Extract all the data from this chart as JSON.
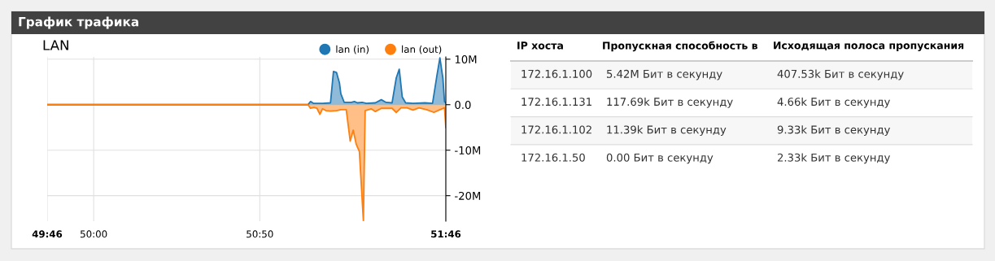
{
  "chart_data": [
    {
      "type": "area",
      "title": "График трафика",
      "subtitle": "LAN",
      "xlim": [
        49.7667,
        51.7667
      ],
      "xticks": [
        {
          "value": 49.7667,
          "label": "49:46"
        },
        {
          "value": 50,
          "label": "50:00"
        },
        {
          "value": 50.8333,
          "label": "50:50"
        },
        {
          "value": 51.7667,
          "label": "51:46"
        }
      ],
      "ylim": [
        -25.6,
        10.5
      ],
      "yticks": [
        {
          "value": 10,
          "label": "10M"
        },
        {
          "value": 0,
          "label": "0.0"
        },
        {
          "value": -10,
          "label": "-10M"
        },
        {
          "value": -20,
          "label": "-20M"
        }
      ],
      "grid": true,
      "legend": "top right",
      "marker": "none",
      "line_style": "solid",
      "series": [
        {
          "name": "lan (in)",
          "color": "#1f77b4",
          "x": [
            49.7667,
            51.075,
            51.088,
            51.102,
            51.12,
            51.15,
            51.188,
            51.203,
            51.218,
            51.233,
            51.24,
            51.257,
            51.293,
            51.308,
            51.323,
            51.347,
            51.368,
            51.413,
            51.443,
            51.467,
            51.497,
            51.518,
            51.533,
            51.548,
            51.565,
            51.602,
            51.662,
            51.7,
            51.722,
            51.737,
            51.752,
            51.76,
            51.7667
          ],
          "values": [
            0,
            0,
            0.7,
            0.3,
            0.3,
            0.3,
            0.4,
            7.3,
            7.1,
            4.8,
            2.4,
            0.5,
            0.5,
            0.7,
            0.4,
            0.5,
            0.3,
            0.4,
            1.1,
            0.5,
            0.4,
            5.9,
            7.8,
            1.7,
            0.4,
            0.3,
            0.4,
            0.3,
            6.4,
            10.3,
            5.8,
            0.7,
            0.4
          ]
        },
        {
          "name": "lan (out)",
          "color": "#ff7f0e",
          "x": [
            49.7667,
            51.075,
            51.088,
            51.105,
            51.12,
            51.135,
            51.148,
            51.165,
            51.188,
            51.218,
            51.24,
            51.267,
            51.287,
            51.302,
            51.317,
            51.333,
            51.353,
            51.362,
            51.392,
            51.413,
            51.443,
            51.497,
            51.518,
            51.542,
            51.572,
            51.602,
            51.632,
            51.67,
            51.707,
            51.737,
            51.76,
            51.7667
          ],
          "values": [
            0,
            0,
            -0.8,
            -0.6,
            -0.8,
            -2.1,
            -0.9,
            -1.3,
            -1.4,
            -1.3,
            -1.1,
            -1.1,
            -8.0,
            -5.6,
            -8.7,
            -10.3,
            -25.5,
            -1.3,
            -0.9,
            -1.5,
            -0.8,
            -0.8,
            -1.7,
            -0.7,
            -0.7,
            -1.2,
            -0.7,
            -1.1,
            -1.7,
            -1.1,
            -0.7,
            -5.0
          ]
        }
      ]
    },
    {
      "type": "other",
      "categories": [
        "IP хоста",
        "Пропускная способность в",
        "Исходящая полоса пропускания"
      ],
      "cell_labels": [
        [
          "172.16.1.100",
          "5.42M Бит в секунду",
          "407.53k Бит в секунду"
        ],
        [
          "172.16.1.131",
          "117.69k Бит в секунду",
          "4.66k Бит в секунду"
        ],
        [
          "172.16.1.102",
          "11.39k Бит в секунду",
          "9.33k Бит в секунду"
        ],
        [
          "172.16.1.50",
          "0.00 Бит в секунду",
          "2.33k Бит в секунду"
        ]
      ]
    }
  ]
}
